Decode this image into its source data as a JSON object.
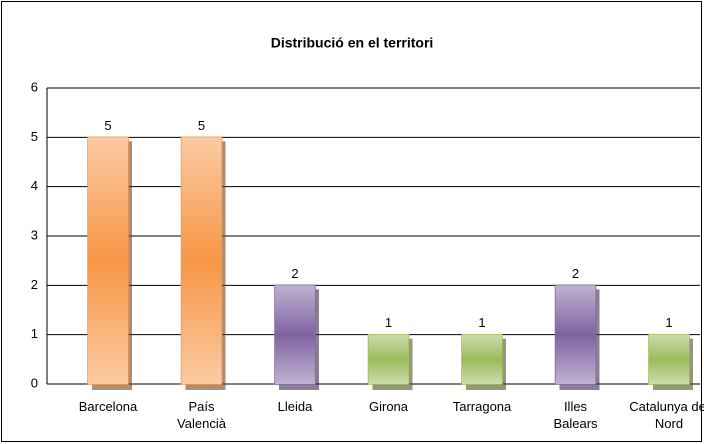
{
  "chart_data": {
    "type": "bar",
    "title": "Distribució en el territori",
    "categories": [
      "Barcelona",
      "País Valencià",
      "Lleida",
      "Girona",
      "Tarragona",
      "Illes Balears",
      "Catalunya del Nord"
    ],
    "values": [
      5,
      5,
      2,
      1,
      1,
      2,
      1
    ],
    "colors": [
      "#f79646",
      "#f79646",
      "#8064a2",
      "#9bbb59",
      "#9bbb59",
      "#8064a2",
      "#9bbb59"
    ],
    "ylim": [
      0,
      6
    ],
    "yticks": [
      0,
      1,
      2,
      3,
      4,
      5,
      6
    ],
    "grid": true
  }
}
